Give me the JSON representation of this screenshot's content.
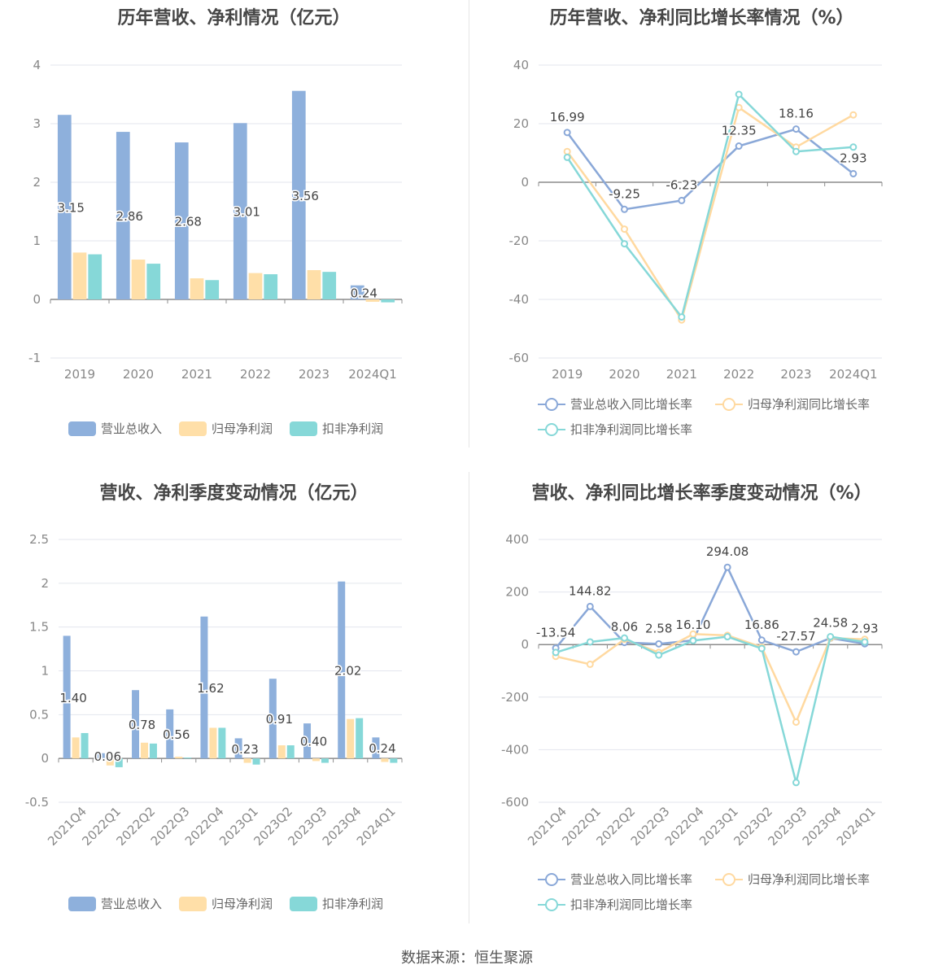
{
  "chart_data": [
    {
      "id": "c1",
      "type": "bar",
      "title": "历年营收、净利情况（亿元）",
      "categories": [
        "2019",
        "2020",
        "2021",
        "2022",
        "2023",
        "2024Q1"
      ],
      "ylim": [
        -1,
        4
      ],
      "yticks": [
        -1,
        0,
        1,
        2,
        3,
        4
      ],
      "series": [
        {
          "name": "营业总收入",
          "color": "#8eb0dc",
          "values": [
            3.15,
            2.86,
            2.68,
            3.01,
            3.56,
            0.24
          ]
        },
        {
          "name": "归母净利润",
          "color": "#ffdfa8",
          "values": [
            0.8,
            0.68,
            0.36,
            0.45,
            0.5,
            -0.04
          ]
        },
        {
          "name": "扣非净利润",
          "color": "#86d8d8",
          "values": [
            0.77,
            0.61,
            0.33,
            0.43,
            0.47,
            -0.05
          ]
        }
      ],
      "data_labels": [
        "3.15",
        "2.86",
        "2.68",
        "3.01",
        "3.56",
        "0.24"
      ],
      "legend_position": "bottom",
      "grid": true
    },
    {
      "id": "c2",
      "type": "line",
      "title": "历年营收、净利同比增长率情况（%）",
      "categories": [
        "2019",
        "2020",
        "2021",
        "2022",
        "2023",
        "2024Q1"
      ],
      "ylim": [
        -60,
        40
      ],
      "yticks": [
        -60,
        -40,
        -20,
        0,
        20,
        40
      ],
      "series": [
        {
          "name": "营业总收入同比增长率",
          "color": "#8aa8d8",
          "values": [
            16.99,
            -9.25,
            -6.23,
            12.35,
            18.16,
            2.93
          ]
        },
        {
          "name": "归母净利润同比增长率",
          "color": "#ffd9a0",
          "values": [
            10.5,
            -16,
            -47,
            25.5,
            12,
            23
          ]
        },
        {
          "name": "扣非净利润同比增长率",
          "color": "#86d8d8",
          "values": [
            8.5,
            -21,
            -46,
            30,
            10.5,
            12
          ]
        }
      ],
      "data_labels": [
        "16.99",
        "-9.25",
        "-6.23",
        "12.35",
        "18.16",
        "2.93"
      ],
      "legend_position": "bottom",
      "grid": true
    },
    {
      "id": "c3",
      "type": "bar",
      "title": "营收、净利季度变动情况（亿元）",
      "categories": [
        "2021Q4",
        "2022Q1",
        "2022Q2",
        "2022Q3",
        "2022Q4",
        "2023Q1",
        "2023Q2",
        "2023Q3",
        "2023Q4",
        "2024Q1"
      ],
      "ylim": [
        -0.5,
        2.5
      ],
      "yticks": [
        -0.5,
        0,
        0.5,
        1,
        1.5,
        2,
        2.5
      ],
      "series": [
        {
          "name": "营业总收入",
          "color": "#8eb0dc",
          "values": [
            1.4,
            0.06,
            0.78,
            0.56,
            1.62,
            0.23,
            0.91,
            0.4,
            2.02,
            0.24
          ]
        },
        {
          "name": "归母净利润",
          "color": "#ffdfa8",
          "values": [
            0.24,
            -0.08,
            0.18,
            0.02,
            0.35,
            -0.05,
            0.15,
            -0.03,
            0.45,
            -0.04
          ]
        },
        {
          "name": "扣非净利润",
          "color": "#86d8d8",
          "values": [
            0.29,
            -0.1,
            0.17,
            0.01,
            0.35,
            -0.07,
            0.15,
            -0.05,
            0.46,
            -0.05
          ]
        }
      ],
      "data_labels": [
        "1.40",
        "0.06",
        "0.78",
        "0.56",
        "1.62",
        "0.23",
        "0.91",
        "0.40",
        "2.02",
        "0.24"
      ],
      "legend_position": "bottom",
      "grid": true
    },
    {
      "id": "c4",
      "type": "line",
      "title": "营收、净利同比增长率季度变动情况（%）",
      "categories": [
        "2021Q4",
        "2022Q1",
        "2022Q2",
        "2022Q3",
        "2022Q4",
        "2023Q1",
        "2023Q2",
        "2023Q3",
        "2023Q4",
        "2024Q1"
      ],
      "ylim": [
        -600,
        400
      ],
      "yticks": [
        -600,
        -400,
        -200,
        0,
        200,
        400
      ],
      "series": [
        {
          "name": "营业总收入同比增长率",
          "color": "#8aa8d8",
          "values": [
            -13.54,
            144.82,
            8.06,
            2.58,
            16.1,
            294.08,
            16.86,
            -27.57,
            24.58,
            2.93
          ]
        },
        {
          "name": "归母净利润同比增长率",
          "color": "#ffd9a0",
          "values": [
            -45,
            -75,
            20,
            -30,
            40,
            35,
            -10,
            -295,
            25,
            20
          ]
        },
        {
          "name": "扣非净利润同比增长率",
          "color": "#86d8d8",
          "values": [
            -30,
            10,
            25,
            -40,
            15,
            30,
            -15,
            -525,
            30,
            10
          ]
        }
      ],
      "data_labels": [
        "-13.54",
        "144.82",
        "8.06",
        "2.58",
        "16.10",
        "294.08",
        "16.86",
        "-27.57",
        "24.58",
        "2.93"
      ],
      "legend_position": "bottom",
      "grid": true
    }
  ],
  "source": "数据来源：恒生聚源"
}
